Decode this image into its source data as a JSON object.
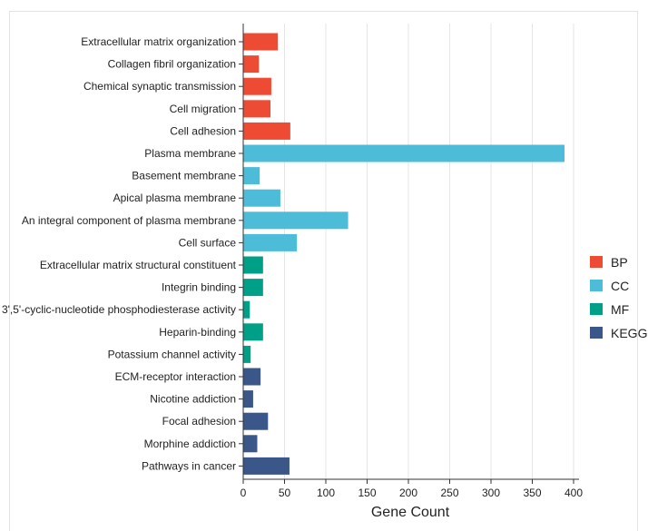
{
  "chart_data": {
    "type": "bar",
    "orientation": "horizontal",
    "title": "",
    "xlabel": "Gene Count",
    "ylabel": "",
    "xlim": [
      0,
      400
    ],
    "xticks": [
      0,
      50,
      100,
      150,
      200,
      250,
      300,
      350,
      400
    ],
    "grid": "vertical",
    "legend_position": "right",
    "groups": [
      {
        "name": "BP",
        "color": "#ee4b35"
      },
      {
        "name": "CC",
        "color": "#4dbcd9"
      },
      {
        "name": "MF",
        "color": "#009f87"
      },
      {
        "name": "KEGG",
        "color": "#3b5688"
      }
    ],
    "categories": [
      "Extracellular matrix organization",
      "Collagen fibril organization",
      "Chemical synaptic transmission",
      "Cell migration",
      "Cell adhesion",
      "Plasma membrane",
      "Basement membrane",
      "Apical plasma membrane",
      "An integral component of plasma membrane",
      "Cell surface",
      "Extracellular matrix structural constituent",
      "Integrin binding",
      "3',5'-cyclic-nucleotide phosphodiesterase activity",
      "Heparin-binding",
      "Potassium channel activity",
      "ECM-receptor interaction",
      "Nicotine addiction",
      "Focal adhesion",
      "Morphine addiction",
      "Pathways in cancer"
    ],
    "category_group": [
      "BP",
      "BP",
      "BP",
      "BP",
      "BP",
      "CC",
      "CC",
      "CC",
      "CC",
      "CC",
      "MF",
      "MF",
      "MF",
      "MF",
      "MF",
      "KEGG",
      "KEGG",
      "KEGG",
      "KEGG",
      "KEGG"
    ],
    "values": [
      42,
      19,
      34,
      33,
      57,
      389,
      20,
      45,
      127,
      65,
      24,
      24,
      8,
      24,
      9,
      21,
      12,
      30,
      17,
      56
    ]
  }
}
